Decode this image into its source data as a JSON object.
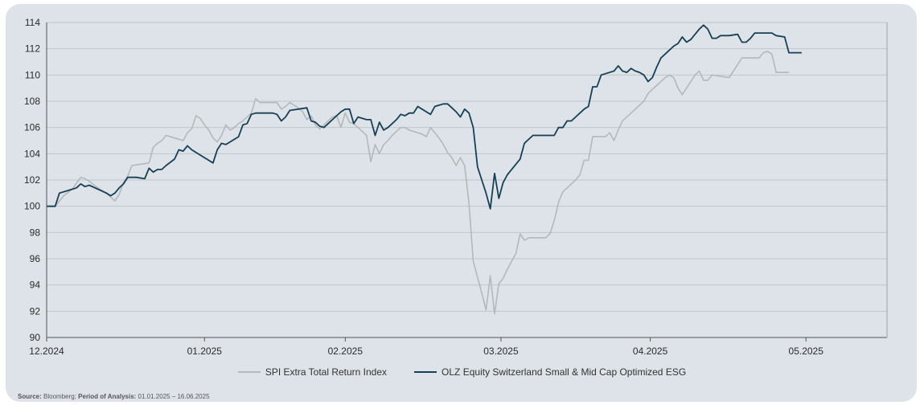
{
  "chart_data": {
    "type": "line",
    "ylim": [
      90,
      114
    ],
    "yticks": [
      90,
      92,
      94,
      96,
      98,
      100,
      102,
      104,
      106,
      108,
      110,
      112,
      114
    ],
    "xlim": [
      0,
      197
    ],
    "xticks": [
      {
        "label": "12.2024",
        "x": 0
      },
      {
        "label": "01.2025",
        "x": 37
      },
      {
        "label": "02.2025",
        "x": 70
      },
      {
        "label": "03.2025",
        "x": 106.5
      },
      {
        "label": "04.2025",
        "x": 141.5
      },
      {
        "label": "05.2025",
        "x": 178
      }
    ],
    "grid": true,
    "legend_position": "bottom",
    "series": [
      {
        "name": "SPI Extra Total Return Index",
        "color": "#b4b8ba",
        "points": [
          [
            0,
            100
          ],
          [
            2,
            100
          ],
          [
            4,
            100.8
          ],
          [
            6,
            101.3
          ],
          [
            8,
            102.2
          ],
          [
            9,
            102.1
          ],
          [
            10,
            101.9
          ],
          [
            12,
            101.4
          ],
          [
            14,
            101.0
          ],
          [
            15,
            100.7
          ],
          [
            16,
            100.4
          ],
          [
            17,
            100.9
          ],
          [
            18,
            101.8
          ],
          [
            19,
            102.3
          ],
          [
            20,
            103.1
          ],
          [
            22,
            103.2
          ],
          [
            24,
            103.3
          ],
          [
            25,
            104.5
          ],
          [
            26,
            104.8
          ],
          [
            27,
            105.0
          ],
          [
            28,
            105.4
          ],
          [
            30,
            105.2
          ],
          [
            32,
            105.0
          ],
          [
            33,
            105.6
          ],
          [
            34,
            105.9
          ],
          [
            35,
            106.9
          ],
          [
            36,
            106.7
          ],
          [
            37,
            106.2
          ],
          [
            38,
            105.8
          ],
          [
            39,
            105.2
          ],
          [
            40,
            104.9
          ],
          [
            41,
            105.4
          ],
          [
            42,
            106.2
          ],
          [
            43,
            105.8
          ],
          [
            44,
            106.0
          ],
          [
            45,
            106.3
          ],
          [
            46,
            106.5
          ],
          [
            47,
            106.8
          ],
          [
            48,
            107.1
          ],
          [
            49,
            108.2
          ],
          [
            50,
            107.9
          ],
          [
            52,
            107.9
          ],
          [
            54,
            107.9
          ],
          [
            55,
            107.4
          ],
          [
            56,
            107.6
          ],
          [
            57,
            107.9
          ],
          [
            58,
            107.7
          ],
          [
            59,
            107.5
          ],
          [
            60,
            107.2
          ],
          [
            61,
            106.6
          ],
          [
            62,
            106.9
          ],
          [
            63,
            106.2
          ],
          [
            64,
            105.9
          ],
          [
            65,
            106.2
          ],
          [
            66,
            106.5
          ],
          [
            67,
            106.8
          ],
          [
            68,
            106.9
          ],
          [
            69,
            106.0
          ],
          [
            70,
            107.1
          ],
          [
            71,
            106.4
          ],
          [
            72,
            106.3
          ],
          [
            73,
            106.0
          ],
          [
            74,
            105.7
          ],
          [
            75,
            105.4
          ],
          [
            76,
            103.4
          ],
          [
            77,
            104.7
          ],
          [
            78,
            104.0
          ],
          [
            79,
            104.7
          ],
          [
            80,
            105.0
          ],
          [
            81,
            105.4
          ],
          [
            82,
            105.7
          ],
          [
            83,
            106.0
          ],
          [
            84,
            106.0
          ],
          [
            85,
            105.8
          ],
          [
            86,
            105.7
          ],
          [
            87,
            105.6
          ],
          [
            88,
            105.5
          ],
          [
            89,
            105.3
          ],
          [
            90,
            106.0
          ],
          [
            91,
            105.6
          ],
          [
            92,
            105.2
          ],
          [
            93,
            104.7
          ],
          [
            94,
            104.1
          ],
          [
            95,
            103.7
          ],
          [
            96,
            103.1
          ],
          [
            97,
            103.7
          ],
          [
            98,
            103.1
          ],
          [
            99,
            100.2
          ],
          [
            100,
            95.8
          ],
          [
            101,
            94.6
          ],
          [
            102,
            93.4
          ],
          [
            103,
            92.1
          ],
          [
            104,
            94.7
          ],
          [
            105,
            91.8
          ],
          [
            106,
            94.1
          ],
          [
            107,
            94.5
          ],
          [
            108,
            95.2
          ],
          [
            109,
            95.8
          ],
          [
            110,
            96.4
          ],
          [
            111,
            97.9
          ],
          [
            112,
            97.4
          ],
          [
            113,
            97.6
          ],
          [
            115,
            97.6
          ],
          [
            117,
            97.6
          ],
          [
            118,
            97.9
          ],
          [
            119,
            98.9
          ],
          [
            120,
            100.3
          ],
          [
            121,
            101.1
          ],
          [
            122,
            101.4
          ],
          [
            123,
            101.7
          ],
          [
            124,
            102.0
          ],
          [
            125,
            102.4
          ],
          [
            126,
            103.5
          ],
          [
            127,
            103.5
          ],
          [
            128,
            105.3
          ],
          [
            129,
            105.3
          ],
          [
            131,
            105.3
          ],
          [
            132,
            105.6
          ],
          [
            133,
            105.0
          ],
          [
            134,
            105.8
          ],
          [
            135,
            106.5
          ],
          [
            136,
            106.8
          ],
          [
            137,
            107.1
          ],
          [
            138,
            107.4
          ],
          [
            139,
            107.7
          ],
          [
            140,
            108.0
          ],
          [
            141,
            108.6
          ],
          [
            142,
            108.9
          ],
          [
            143,
            109.2
          ],
          [
            144,
            109.5
          ],
          [
            145,
            109.8
          ],
          [
            146,
            110.0
          ],
          [
            147,
            109.8
          ],
          [
            148,
            109.0
          ],
          [
            149,
            108.5
          ],
          [
            150,
            109.0
          ],
          [
            151,
            109.5
          ],
          [
            152,
            110.0
          ],
          [
            153,
            110.3
          ],
          [
            154,
            109.6
          ],
          [
            155,
            109.6
          ],
          [
            156,
            110.0
          ],
          [
            158,
            109.9
          ],
          [
            160,
            109.8
          ],
          [
            161,
            110.3
          ],
          [
            162,
            110.8
          ],
          [
            163,
            111.3
          ],
          [
            165,
            111.3
          ],
          [
            167,
            111.3
          ],
          [
            168,
            111.7
          ],
          [
            169,
            111.8
          ],
          [
            170,
            111.6
          ],
          [
            171,
            110.2
          ],
          [
            173,
            110.2
          ],
          [
            174,
            110.2
          ]
        ]
      },
      {
        "name": "OLZ Equity Switzerland Small & Mid Cap Optimized ESG",
        "color": "#173f55",
        "points": [
          [
            0,
            100
          ],
          [
            2,
            100
          ],
          [
            3,
            101.0
          ],
          [
            5,
            101.2
          ],
          [
            7,
            101.4
          ],
          [
            8,
            101.7
          ],
          [
            9,
            101.5
          ],
          [
            10,
            101.6
          ],
          [
            12,
            101.3
          ],
          [
            14,
            101.0
          ],
          [
            15,
            100.8
          ],
          [
            16,
            101.0
          ],
          [
            17,
            101.4
          ],
          [
            18,
            101.7
          ],
          [
            19,
            102.2
          ],
          [
            21,
            102.2
          ],
          [
            23,
            102.1
          ],
          [
            24,
            102.9
          ],
          [
            25,
            102.6
          ],
          [
            26,
            102.8
          ],
          [
            27,
            102.8
          ],
          [
            28,
            103.1
          ],
          [
            30,
            103.6
          ],
          [
            31,
            104.3
          ],
          [
            32,
            104.2
          ],
          [
            33,
            104.6
          ],
          [
            34,
            104.3
          ],
          [
            36,
            103.9
          ],
          [
            38,
            103.5
          ],
          [
            39,
            103.3
          ],
          [
            40,
            104.3
          ],
          [
            41,
            104.8
          ],
          [
            42,
            104.7
          ],
          [
            43,
            104.9
          ],
          [
            45,
            105.3
          ],
          [
            46,
            106.2
          ],
          [
            47,
            106.3
          ],
          [
            48,
            107.0
          ],
          [
            49,
            107.1
          ],
          [
            51,
            107.1
          ],
          [
            53,
            107.1
          ],
          [
            54,
            107.0
          ],
          [
            55,
            106.5
          ],
          [
            56,
            106.8
          ],
          [
            57,
            107.3
          ],
          [
            59,
            107.4
          ],
          [
            61,
            107.5
          ],
          [
            62,
            106.5
          ],
          [
            63,
            106.4
          ],
          [
            64,
            106.1
          ],
          [
            65,
            106.0
          ],
          [
            66,
            106.3
          ],
          [
            67,
            106.6
          ],
          [
            68,
            106.9
          ],
          [
            69,
            107.2
          ],
          [
            70,
            107.4
          ],
          [
            71,
            107.4
          ],
          [
            72,
            106.3
          ],
          [
            73,
            106.8
          ],
          [
            75,
            106.6
          ],
          [
            76,
            106.6
          ],
          [
            77,
            105.4
          ],
          [
            78,
            106.4
          ],
          [
            79,
            105.8
          ],
          [
            80,
            106.0
          ],
          [
            81,
            106.3
          ],
          [
            82,
            106.6
          ],
          [
            83,
            107.0
          ],
          [
            84,
            106.9
          ],
          [
            85,
            107.1
          ],
          [
            86,
            107.1
          ],
          [
            87,
            107.6
          ],
          [
            88,
            107.4
          ],
          [
            89,
            107.2
          ],
          [
            90,
            107.0
          ],
          [
            91,
            107.6
          ],
          [
            92,
            107.7
          ],
          [
            93,
            107.8
          ],
          [
            94,
            107.8
          ],
          [
            95,
            107.5
          ],
          [
            96,
            107.2
          ],
          [
            97,
            106.8
          ],
          [
            98,
            107.4
          ],
          [
            99,
            107.1
          ],
          [
            100,
            106.0
          ],
          [
            101,
            103.0
          ],
          [
            102,
            102.0
          ],
          [
            103,
            101.0
          ],
          [
            104,
            99.8
          ],
          [
            105,
            102.5
          ],
          [
            106,
            100.6
          ],
          [
            107,
            101.8
          ],
          [
            108,
            102.4
          ],
          [
            109,
            102.8
          ],
          [
            110,
            103.2
          ],
          [
            111,
            103.6
          ],
          [
            112,
            104.8
          ],
          [
            113,
            105.1
          ],
          [
            114,
            105.4
          ],
          [
            116,
            105.4
          ],
          [
            118,
            105.4
          ],
          [
            119,
            105.4
          ],
          [
            120,
            106.0
          ],
          [
            121,
            106.0
          ],
          [
            122,
            106.5
          ],
          [
            123,
            106.5
          ],
          [
            124,
            106.8
          ],
          [
            125,
            107.1
          ],
          [
            126,
            107.4
          ],
          [
            127,
            107.6
          ],
          [
            128,
            109.1
          ],
          [
            129,
            109.1
          ],
          [
            130,
            110.0
          ],
          [
            131,
            110.1
          ],
          [
            133,
            110.3
          ],
          [
            134,
            110.7
          ],
          [
            135,
            110.3
          ],
          [
            136,
            110.2
          ],
          [
            137,
            110.5
          ],
          [
            138,
            110.3
          ],
          [
            139,
            110.2
          ],
          [
            140,
            110.0
          ],
          [
            141,
            109.5
          ],
          [
            142,
            109.8
          ],
          [
            143,
            110.6
          ],
          [
            144,
            111.3
          ],
          [
            145,
            111.6
          ],
          [
            146,
            111.9
          ],
          [
            147,
            112.2
          ],
          [
            148,
            112.4
          ],
          [
            149,
            112.9
          ],
          [
            150,
            112.5
          ],
          [
            151,
            112.7
          ],
          [
            152,
            113.1
          ],
          [
            153,
            113.5
          ],
          [
            154,
            113.8
          ],
          [
            155,
            113.5
          ],
          [
            156,
            112.8
          ],
          [
            157,
            112.8
          ],
          [
            158,
            113.0
          ],
          [
            160,
            113.0
          ],
          [
            162,
            113.1
          ],
          [
            163,
            112.5
          ],
          [
            164,
            112.5
          ],
          [
            165,
            112.8
          ],
          [
            166,
            113.2
          ],
          [
            168,
            113.2
          ],
          [
            169,
            113.2
          ],
          [
            170,
            113.2
          ],
          [
            171,
            113.0
          ],
          [
            173,
            112.9
          ],
          [
            174,
            111.7
          ],
          [
            176,
            111.7
          ],
          [
            177,
            111.7
          ]
        ]
      }
    ]
  },
  "legend": {
    "items": [
      {
        "label": "SPI Extra Total Return Index",
        "color": "#b4b8ba"
      },
      {
        "label": "OLZ Equity Switzerland Small & Mid Cap Optimized ESG",
        "color": "#173f55"
      }
    ]
  },
  "source": {
    "label1": "Source:",
    "text1": " Bloomberg; ",
    "label2": "Period of Analysis:",
    "text2": " 01.01.2025 – 16.06.2025"
  }
}
